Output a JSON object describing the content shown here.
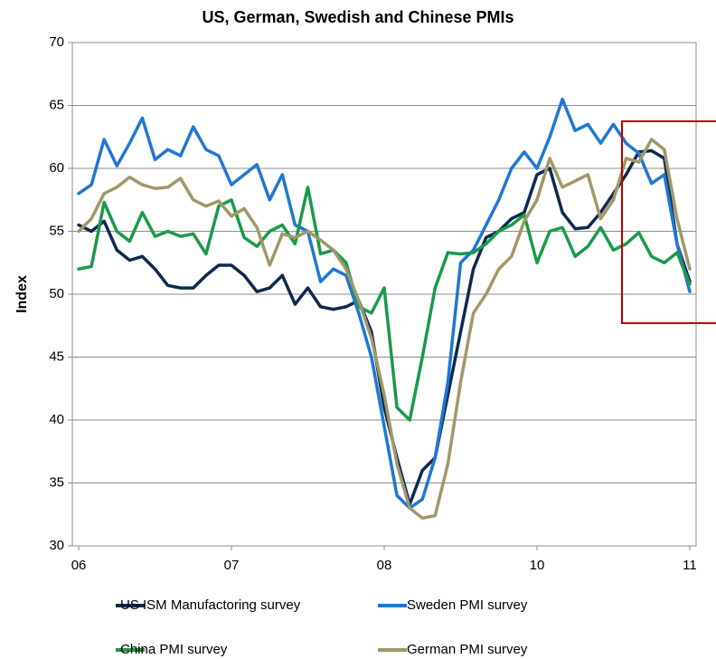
{
  "chart_data": {
    "type": "line",
    "title": "US, German, Swedish and Chinese PMIs",
    "y_label": "Index",
    "categories": [
      "06",
      null,
      null,
      null,
      null,
      null,
      null,
      null,
      null,
      null,
      null,
      null,
      "07",
      null,
      null,
      null,
      null,
      null,
      null,
      null,
      null,
      null,
      null,
      null,
      "08",
      null,
      null,
      null,
      null,
      null,
      null,
      null,
      null,
      null,
      null,
      null,
      "10",
      null,
      null,
      null,
      null,
      null,
      null,
      null,
      null,
      null,
      null,
      null,
      "11"
    ],
    "series": [
      {
        "name": "US ISM Manufactoring survey",
        "color": "#0d2a4f",
        "values": [
          55.5,
          55,
          55.8,
          53.5,
          52.7,
          53,
          52,
          50.7,
          50.5,
          50.5,
          51.5,
          52.3,
          52.3,
          51.5,
          50.2,
          50.5,
          51.5,
          49.2,
          50.5,
          49,
          48.8,
          49,
          49.5,
          47,
          41,
          37,
          33.3,
          36,
          37,
          42,
          47,
          52,
          54.5,
          55,
          56,
          56.5,
          59.5,
          60,
          56.5,
          55.2,
          55.3,
          56.5,
          58,
          59.5,
          61.3,
          61.4,
          60.8,
          54,
          51
        ]
      },
      {
        "name": "Sweden PMI survey",
        "color": "#1f78d1",
        "values": [
          58,
          58.7,
          62.3,
          60.2,
          62,
          64,
          60.7,
          61.5,
          61,
          63.3,
          61.5,
          61,
          58.7,
          59.5,
          60.3,
          57.5,
          59.5,
          55.5,
          55,
          51,
          52,
          51.5,
          48.5,
          45,
          39.5,
          34,
          33,
          33.7,
          37,
          43,
          52.5,
          53.5,
          55.5,
          57.5,
          60,
          61.3,
          60,
          62.5,
          65.5,
          63,
          63.5,
          62,
          63.5,
          62,
          61.2,
          58.8,
          59.5,
          54,
          50.2
        ]
      },
      {
        "name": "China PMI survey",
        "color": "#1a9a4a",
        "values": [
          52,
          52.2,
          57.3,
          55,
          54.2,
          56.5,
          54.6,
          55,
          54.6,
          54.8,
          53.2,
          57,
          57.5,
          54.5,
          53.8,
          55,
          55.5,
          54,
          58.5,
          53.2,
          53.5,
          52.5,
          49,
          48.5,
          50.5,
          41,
          40,
          45,
          50.5,
          53.3,
          53.2,
          53.3,
          54,
          55,
          55.5,
          56.3,
          52.5,
          55,
          55.3,
          53,
          53.8,
          55.3,
          53.5,
          54,
          54.9,
          53,
          52.5,
          53.3,
          50.8
        ]
      },
      {
        "name": "German PMI survey",
        "color": "#a09868",
        "values": [
          55,
          56,
          58,
          58.5,
          59.3,
          58.7,
          58.4,
          58.5,
          59.2,
          57.5,
          57,
          57.4,
          56.2,
          56.8,
          55.3,
          52.3,
          54.8,
          54.5,
          55,
          54.3,
          53.5,
          52,
          49.5,
          46.5,
          42,
          36.5,
          33,
          32.2,
          32.4,
          36.5,
          43,
          48.5,
          50,
          52,
          53,
          55.8,
          57.5,
          60.8,
          58.5,
          59,
          59.5,
          56,
          57.5,
          60.8,
          60.5,
          62.3,
          61.5,
          56,
          52
        ]
      }
    ],
    "ylim": [
      30,
      70
    ],
    "yticks": [
      30,
      35,
      40,
      45,
      50,
      55,
      60,
      65,
      70
    ],
    "grid": true
  }
}
